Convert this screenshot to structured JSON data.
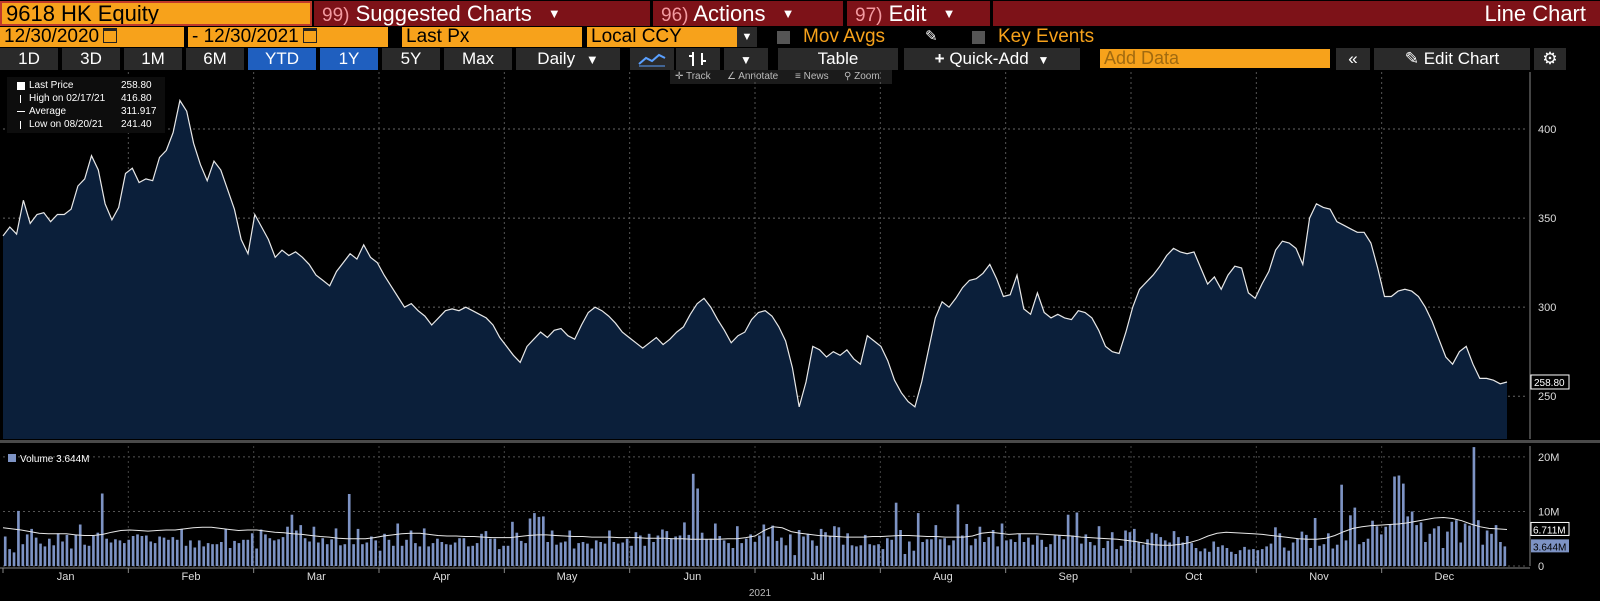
{
  "header": {
    "ticker": "9618 HK Equity",
    "suggested_num": "99)",
    "suggested_label": "Suggested Charts",
    "actions_num": "96)",
    "actions_label": "Actions",
    "edit_num": "97)",
    "edit_label": "Edit",
    "title": "Line Chart"
  },
  "controls": {
    "date_from": "12/30/2020",
    "date_sep": "-",
    "date_to": "12/30/2021",
    "field": "Last Px",
    "currency": "Local CCY",
    "mov_avgs": "Mov Avgs",
    "key_events": "Key Events"
  },
  "toolbar": {
    "ranges": [
      "1D",
      "3D",
      "1M",
      "6M",
      "YTD",
      "1Y",
      "5Y",
      "Max"
    ],
    "selected_ranges": [
      "YTD",
      "1Y"
    ],
    "period": "Daily",
    "table": "Table",
    "quick_add": "Quick-Add",
    "add_data_placeholder": "Add Data",
    "edit_chart": "Edit Chart"
  },
  "subtools": {
    "track": "Track",
    "annotate": "Annotate",
    "news": "News",
    "zoom": "Zoom"
  },
  "legend": {
    "last_price_label": "Last Price",
    "last_price_value": "258.80",
    "high_label": "High on 02/17/21",
    "high_value": "416.80",
    "average_label": "Average",
    "average_value": "311.917",
    "low_label": "Low on 08/20/21",
    "low_value": "241.40",
    "volume_label": "Volume 3.644M"
  },
  "colors": {
    "orange": "#f7a21b",
    "header_red": "#7d1218",
    "selected_blue": "#1f5fbf",
    "price_area": "#0b1f3a",
    "volume_bar": "#7d93c4"
  },
  "chart_data": [
    {
      "type": "area",
      "x_labels": [
        "Jan",
        "Feb",
        "Mar",
        "Apr",
        "May",
        "Jun",
        "Jul",
        "Aug",
        "Sep",
        "Oct",
        "Nov",
        "Dec"
      ],
      "x_year": "2021",
      "y_ticks": [
        "250",
        "300",
        "350",
        "400"
      ],
      "ylim": [
        226,
        432
      ],
      "last_value_label": "258.80",
      "series": [
        {
          "values": [
            340,
            345,
            341,
            360,
            347,
            352,
            353,
            348,
            352,
            352,
            355,
            368,
            372,
            385,
            377,
            358,
            349,
            356,
            375,
            378,
            370,
            372,
            371,
            384,
            388,
            398,
            416,
            410,
            392,
            380,
            371,
            382,
            377,
            366,
            355,
            338,
            330,
            352,
            345,
            338,
            328,
            332,
            329,
            331,
            328,
            324,
            318,
            315,
            312,
            320,
            325,
            330,
            327,
            335,
            328,
            325,
            318,
            312,
            306,
            300,
            302,
            298,
            295,
            290,
            294,
            298,
            299,
            298,
            300,
            298,
            296,
            294,
            290,
            283,
            278,
            273,
            269,
            278,
            282,
            286,
            283,
            287,
            288,
            284,
            282,
            290,
            297,
            300,
            298,
            295,
            291,
            286,
            283,
            280,
            277,
            280,
            283,
            279,
            282,
            286,
            289,
            296,
            302,
            305,
            300,
            293,
            287,
            280,
            284,
            286,
            293,
            297,
            298,
            295,
            289,
            281,
            266,
            244,
            258,
            278,
            276,
            272,
            275,
            273,
            276,
            271,
            268,
            284,
            281,
            278,
            270,
            259,
            252,
            247,
            244,
            258,
            276,
            294,
            303,
            300,
            305,
            311,
            315,
            316,
            319,
            324,
            316,
            306,
            307,
            318,
            299,
            296,
            308,
            297,
            294,
            296,
            294,
            293,
            298,
            297,
            294,
            287,
            278,
            275,
            274,
            286,
            300,
            310,
            314,
            318,
            323,
            329,
            333,
            331,
            330,
            331,
            322,
            313,
            317,
            310,
            318,
            323,
            322,
            308,
            305,
            313,
            320,
            332,
            337,
            336,
            333,
            324,
            350,
            358,
            356,
            355,
            348,
            346,
            344,
            342,
            342,
            336,
            322,
            306,
            306,
            309,
            310,
            309,
            306,
            300,
            292,
            282,
            272,
            268,
            275,
            278,
            268,
            260,
            260,
            259,
            257,
            258
          ]
        }
      ]
    },
    {
      "type": "bar",
      "y_ticks": [
        "20M",
        "10M",
        "0"
      ],
      "ylim": [
        0,
        22
      ],
      "legend": "Volume 3.644M",
      "last_value_labels": [
        "6.711M",
        "3.644M"
      ],
      "series": [
        {
          "values": [
            5.4,
            3.1,
            2.5,
            10.1,
            4.0,
            5.8,
            6.8,
            5.2,
            4.1,
            3.6,
            5.0,
            3.8,
            6.0,
            4.5,
            5.7,
            3.2,
            5.8,
            7.6,
            3.9,
            3.7,
            5.5,
            6.1,
            13.3,
            5.0,
            4.3,
            4.9,
            4.7,
            4.2,
            4.8,
            5.5,
            5.8,
            5.5,
            5.6,
            4.5,
            4.2,
            5.4,
            5.2,
            4.8,
            5.3,
            4.8,
            6.8,
            3.7,
            4.7,
            3.4,
            4.7,
            3.6,
            4.2,
            4.0,
            4.0,
            4.4,
            6.7,
            3.3,
            4.6,
            4.2,
            4.8,
            4.8,
            6.0,
            3.2,
            6.7,
            5.8,
            5.1,
            4.7,
            4.9,
            5.3,
            7.2,
            9.4,
            6.5,
            7.5,
            5.1,
            4.5,
            7.2,
            4.3,
            5.1,
            4.0,
            4.9,
            6.9,
            3.8,
            4.0,
            13.2,
            4.0,
            6.8,
            4.0,
            4.3,
            5.4,
            4.7,
            2.8,
            5.9,
            4.8,
            3.7,
            7.8,
            3.7,
            4.8,
            6.5,
            4.2,
            3.6,
            6.9,
            3.6,
            4.2,
            5.0,
            4.4,
            4.0,
            3.9,
            4.3,
            5.1,
            5.1,
            3.6,
            3.7,
            4.2,
            5.9,
            6.4,
            5.0,
            5.0,
            3.1,
            3.7,
            3.7,
            8.1,
            6.1,
            4.6,
            4.2,
            8.7,
            9.7,
            9.0,
            9.1,
            4.4,
            6.5,
            3.9,
            4.3,
            4.5,
            6.5,
            3.2,
            4.2,
            4.4,
            4.1,
            3.2,
            4.7,
            4.4,
            4.1,
            6.5,
            4.4,
            4.1,
            4.3,
            5.0,
            3.7,
            6.2,
            5.6,
            3.7,
            5.9,
            4.4,
            5.6,
            6.7,
            6.4,
            5.0,
            5.4,
            5.6,
            8.0,
            5.7,
            16.9,
            14.2,
            6.1,
            4.9,
            5.0,
            7.8,
            5.5,
            4.7,
            4.2,
            3.3,
            7.3,
            4.2,
            5.0,
            5.8,
            4.4,
            5.6,
            7.6,
            5.4,
            7.4,
            4.6,
            5.2,
            3.8,
            5.8,
            2.0,
            6.6,
            5.4,
            5.9,
            4.7,
            3.7,
            6.8,
            6.2,
            5.4,
            7.3,
            7.1,
            3.9,
            6.0,
            3.8,
            3.6,
            3.8,
            5.7,
            4.0,
            3.8,
            4.0,
            3.1,
            5.1,
            4.8,
            11.6,
            6.6,
            2.2,
            4.5,
            2.8,
            9.7,
            4.4,
            4.9,
            4.9,
            7.5,
            4.9,
            5.1,
            3.8,
            4.7,
            11.3,
            5.6,
            7.7,
            3.8,
            5.0,
            7.2,
            4.4,
            5.3,
            6.6,
            3.6,
            7.8,
            4.7,
            4.9,
            4.4,
            5.9,
            4.4,
            5.2,
            3.9,
            5.6,
            4.8,
            3.5,
            4.0,
            5.6,
            5.6,
            4.9,
            9.4,
            5.6,
            9.8,
            4.1,
            5.8,
            4.4,
            3.8,
            7.3,
            3.3,
            4.6,
            6.2,
            3.1,
            3.7,
            6.5,
            6.2,
            6.8,
            4.3,
            3.9,
            4.9,
            6.1,
            5.9,
            5.3,
            4.7,
            4.3,
            6.4,
            5.3,
            4.3,
            5.5,
            4.2,
            3.3,
            2.7,
            3.2,
            2.6,
            4.5,
            3.5,
            3.8,
            3.3,
            2.6,
            2.2,
            2.9,
            3.5,
            3.0,
            3.1,
            2.9,
            3.1,
            3.6,
            4.1,
            7.1,
            6.0,
            3.4,
            2.8,
            4.3,
            5.0,
            6.3,
            5.7,
            3.3,
            8.8,
            3.7,
            4.0,
            6.0,
            3.2,
            3.9,
            14.9,
            4.7,
            9.3,
            10.7,
            4.0,
            4.4,
            5.0,
            8.3,
            7.3,
            5.8,
            7.2,
            7.6,
            16.4,
            16.6,
            15.1,
            9.1,
            10.0,
            7.5,
            8.0,
            4.4,
            5.9,
            6.9,
            7.3,
            3.3,
            6.3,
            8.1,
            8.4,
            4.3,
            7.8,
            7.4,
            21.8,
            8.4,
            3.9,
            6.5,
            5.9,
            7.5,
            4.4,
            3.6
          ]
        },
        {
          "type": "line",
          "name": "",
          "values": [
            7.0,
            6.8,
            6.6,
            6.3,
            6.0,
            5.9,
            5.9,
            5.9,
            5.7,
            5.6,
            5.6,
            5.8,
            6.2,
            6.5,
            6.6,
            6.5,
            6.4,
            6.5,
            6.6,
            6.6,
            6.8,
            7.0,
            7.1,
            7.1,
            6.9,
            6.7,
            6.5,
            6.6,
            6.6,
            6.4,
            6.2,
            6.1,
            5.9,
            5.8,
            5.6,
            5.4,
            5.3,
            5.1,
            5.0,
            5.0,
            5.0,
            5.2,
            5.5,
            5.7,
            5.9,
            6.0,
            6.0,
            5.8,
            5.6,
            5.5,
            5.5,
            5.4,
            5.4,
            5.3,
            5.2,
            5.2,
            5.2,
            5.4,
            5.6,
            5.7,
            5.7,
            5.6,
            5.5,
            5.4,
            5.4,
            5.3,
            5.3,
            5.3,
            5.2,
            5.2,
            5.2,
            5.1,
            5.1,
            5.1,
            5.0,
            5.0,
            4.9,
            4.9,
            4.9,
            4.9,
            5.0,
            5.0,
            5.2,
            5.5,
            6.5,
            7.2,
            7.0,
            6.3,
            6.0,
            5.8,
            5.6,
            5.5,
            5.4,
            5.3,
            5.3,
            5.3,
            5.4,
            5.4,
            5.5,
            5.6,
            5.6,
            5.5,
            5.4,
            5.4,
            5.3,
            5.3,
            5.3,
            5.5,
            6.0,
            6.2,
            6.0,
            5.8,
            5.9,
            5.9,
            5.9,
            5.8,
            5.7,
            5.6,
            5.5,
            5.3,
            5.2,
            5.1,
            5.0,
            4.9,
            4.7,
            4.5,
            4.2,
            3.9,
            3.8,
            3.8,
            4.0,
            4.3,
            4.8,
            5.5,
            6.0,
            6.2,
            6.1,
            6.0,
            5.9,
            5.8,
            5.6,
            5.4,
            5.2,
            5.0,
            4.9,
            4.9,
            5.1,
            5.6,
            6.3,
            6.9,
            7.2,
            7.4,
            7.5,
            7.6,
            7.7,
            7.9,
            8.2,
            8.5,
            8.8,
            8.9,
            8.7,
            8.3,
            7.7,
            7.2,
            6.9,
            6.8,
            6.7
          ]
        }
      ]
    }
  ]
}
